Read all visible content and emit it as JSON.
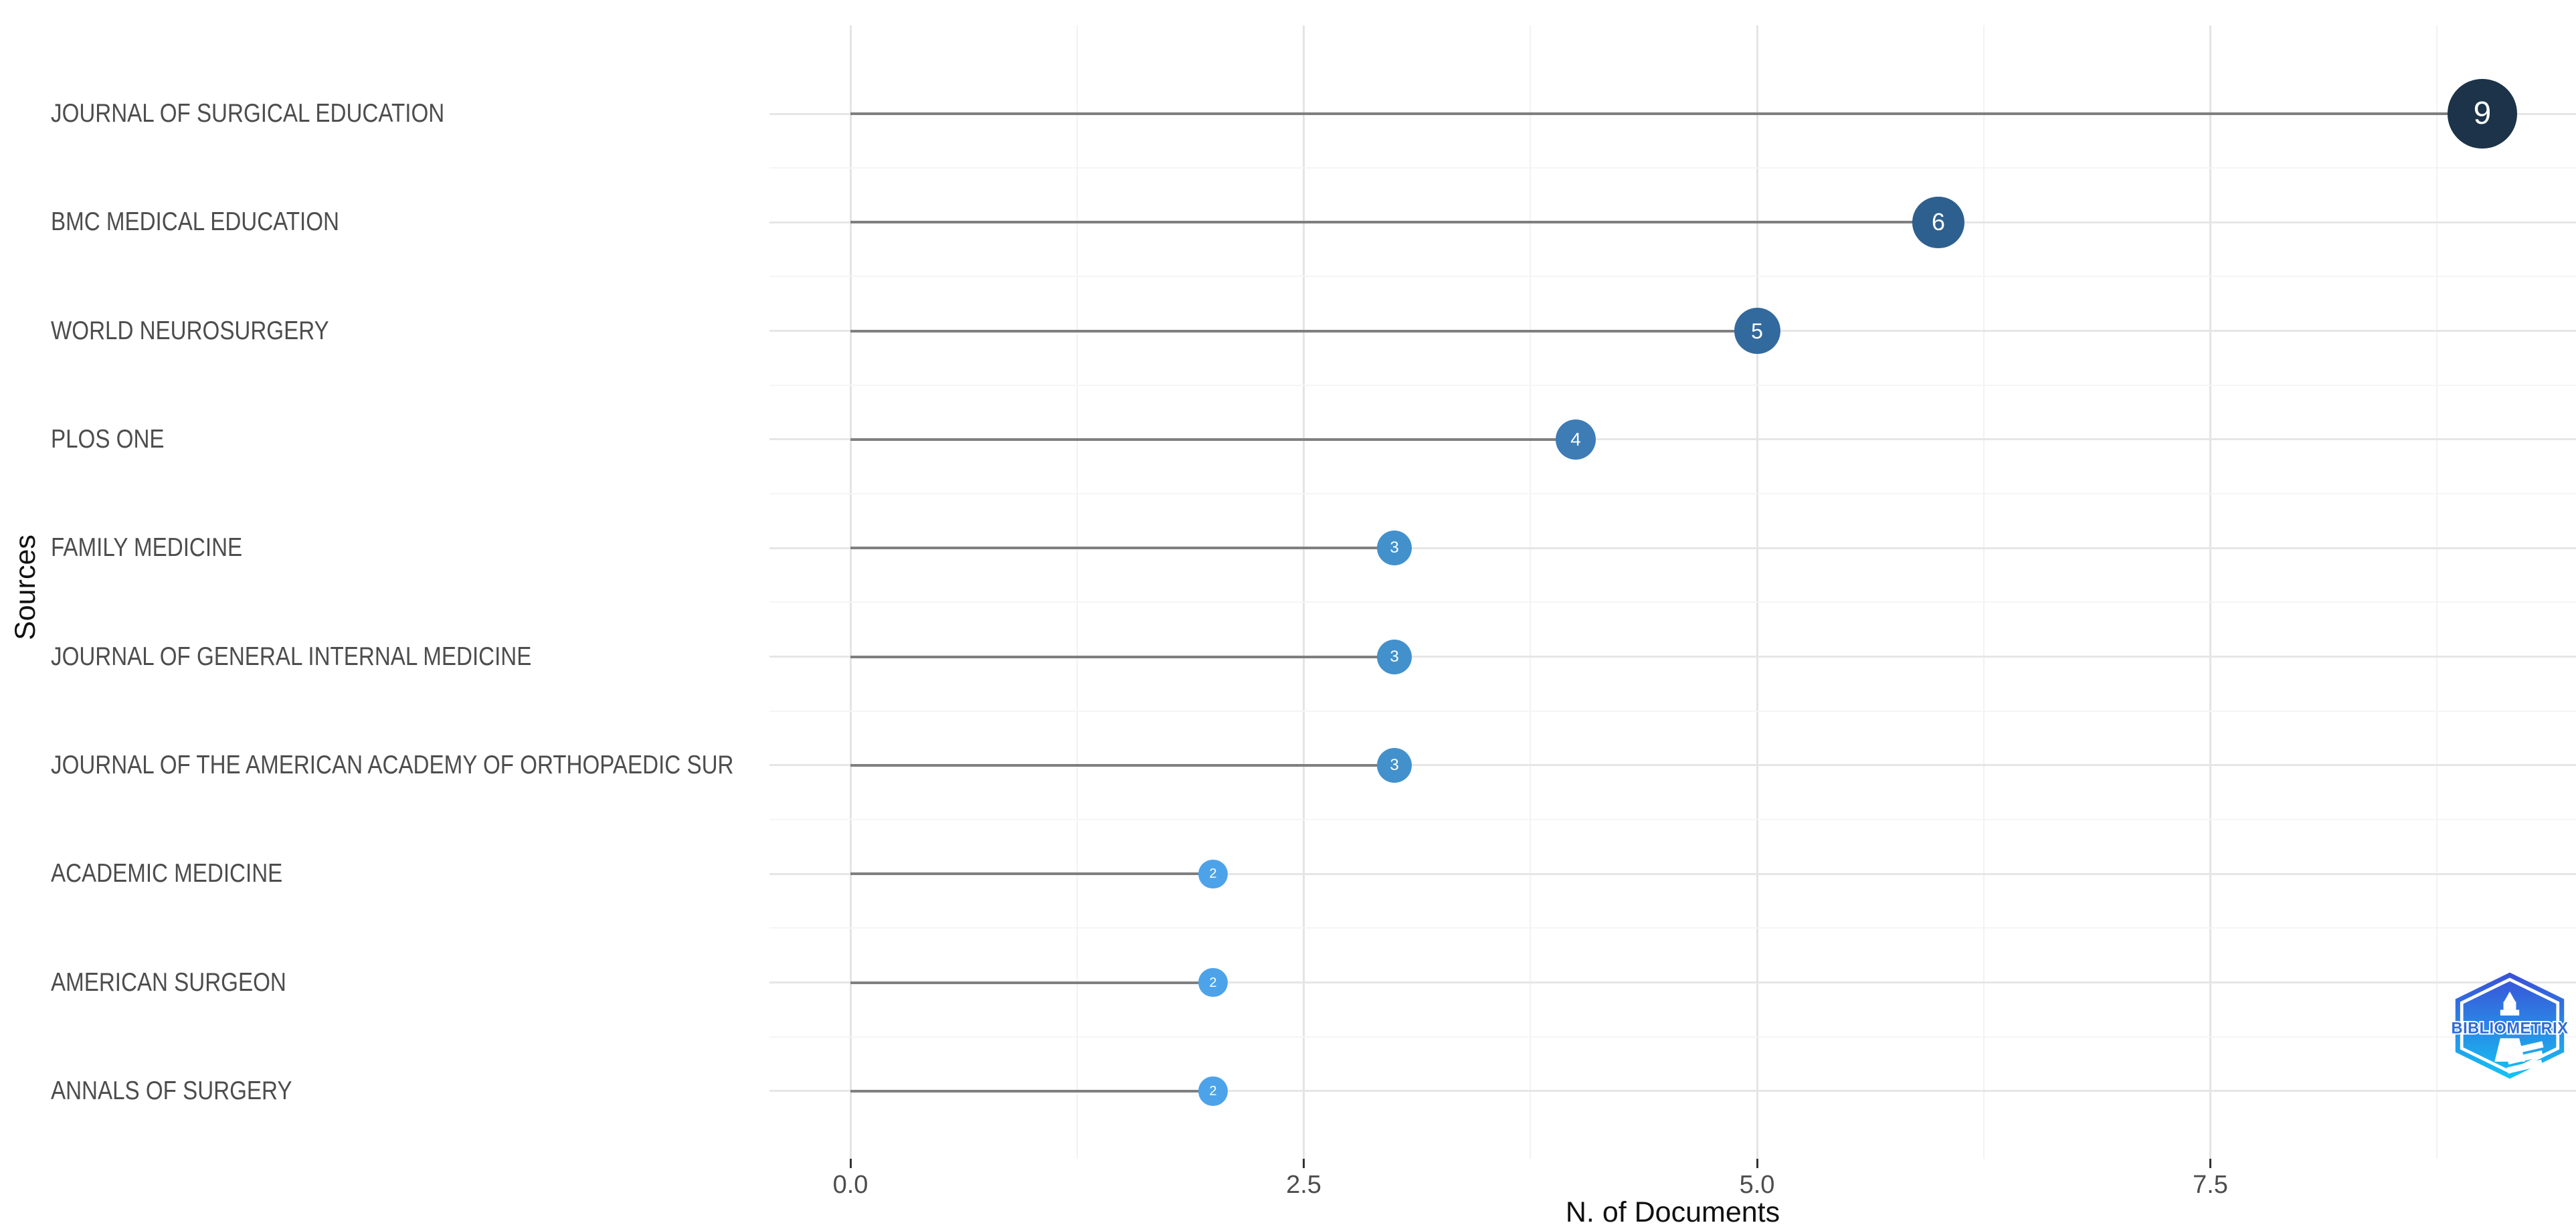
{
  "chart_data": {
    "type": "bar",
    "subtype": "lollipop-horizontal",
    "title": "",
    "xlabel": "N. of Documents",
    "ylabel": "Sources",
    "categories": [
      "JOURNAL OF SURGICAL EDUCATION",
      "BMC MEDICAL EDUCATION",
      "WORLD NEUROSURGERY",
      "PLOS ONE",
      "FAMILY MEDICINE",
      "JOURNAL OF GENERAL INTERNAL MEDICINE",
      "JOURNAL OF THE AMERICAN ACADEMY OF ORTHOPAEDIC SUR",
      "ACADEMIC MEDICINE",
      "AMERICAN SURGEON",
      "ANNALS OF SURGERY"
    ],
    "values": [
      9,
      6,
      5,
      4,
      3,
      3,
      3,
      2,
      2,
      2
    ],
    "point_colors": [
      "#1c3349",
      "#2d608f",
      "#336a9e",
      "#3d7cb5",
      "#4291cc",
      "#4291cc",
      "#4291cc",
      "#4da3ea",
      "#4da3ea",
      "#4da3ea"
    ],
    "x_ticks": [
      0,
      2.5,
      5,
      7.5
    ],
    "x_tick_labels": [
      "0.0",
      "2.5",
      "5.0",
      "7.5"
    ],
    "xlim": [
      -0.45,
      9.5
    ],
    "grid": true,
    "legend": "none",
    "stem_color": "#7f7f7f",
    "grid_major_color": "#e6e6e6",
    "grid_minor_color": "#f2f2f2",
    "axis_text_color": "#4d4d4d",
    "axis_title_color": "#111111",
    "point_label_color": "#ffffff"
  },
  "branding": {
    "logo_text": "BIBLIOMETRIX"
  },
  "colors": {
    "background": "#ffffff",
    "logo_gradient_top": "#3a4fd8",
    "logo_gradient_mid": "#2b86e4",
    "logo_gradient_bottom": "#12c5f4",
    "logo_text_blue": "#2f6bd8"
  }
}
